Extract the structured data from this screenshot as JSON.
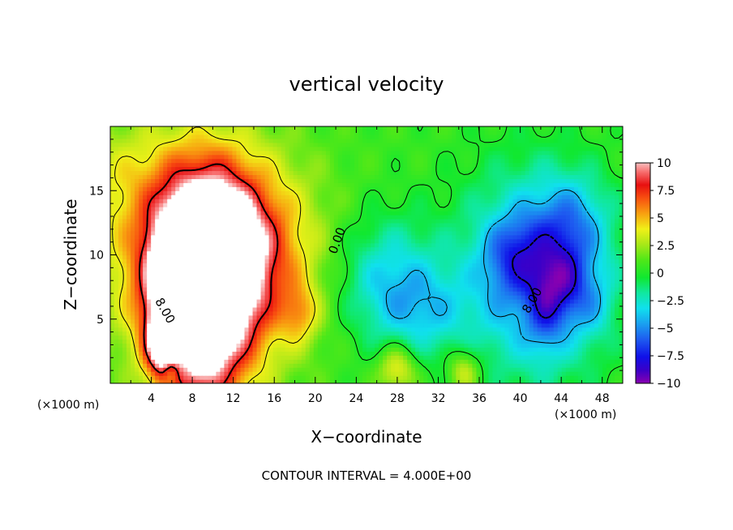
{
  "chart_data": {
    "type": "heatmap",
    "title": "vertical velocity",
    "xlabel": "X−coordinate",
    "ylabel": "Z−coordinate",
    "x_units_left": "(×1000 m)",
    "x_units_right": "(×1000 m)",
    "footer": "CONTOUR INTERVAL = 4.000E+00",
    "xlim": [
      0,
      50
    ],
    "ylim": [
      0,
      20
    ],
    "x_ticks": [
      4,
      8,
      12,
      16,
      20,
      24,
      28,
      32,
      36,
      40,
      44,
      48
    ],
    "y_ticks": [
      5,
      10,
      15
    ],
    "colorbar": {
      "range": [
        -10,
        10
      ],
      "ticks": [
        10,
        7.5,
        5,
        2.5,
        0,
        -2.5,
        -5,
        -7.5,
        -10
      ],
      "tick_labels": [
        "10",
        "7.5",
        "5",
        "2.5",
        "0",
        "−2.5",
        "−5",
        "−7.5",
        "−10"
      ]
    },
    "contour_labels": [
      {
        "text": "0.00",
        "x": 22.5,
        "y": 11.0,
        "rotate": -70
      },
      {
        "text": "8.00",
        "x": 5.0,
        "y": 5.5,
        "rotate": 60
      },
      {
        "text": "8.00",
        "x": 41.5,
        "y": 6.3,
        "rotate": -60
      }
    ],
    "features": [
      {
        "x": 9.5,
        "z": 6.5,
        "value": 10,
        "sx": 3.2,
        "sz": 6.0
      },
      {
        "x": 6.8,
        "z": 6.0,
        "value": 8,
        "sx": 2.4,
        "sz": 4.0
      },
      {
        "x": 10.0,
        "z": 11.0,
        "value": 6,
        "sx": 4.0,
        "sz": 3.5
      },
      {
        "x": 8.0,
        "z": 10.5,
        "value": 4,
        "sx": 7.5,
        "sz": 6.0
      },
      {
        "x": 13.5,
        "z": 9.0,
        "value": 3,
        "sx": 5.0,
        "sz": 5.0
      },
      {
        "x": 18.5,
        "z": 5.5,
        "value": 3,
        "sx": 1.2,
        "sz": 1.5
      },
      {
        "x": 5.0,
        "z": 3.0,
        "value": 6,
        "sx": 1.0,
        "sz": 1.5
      },
      {
        "x": 6.0,
        "z": 1.0,
        "value": -4,
        "sx": 0.6,
        "sz": 0.8
      },
      {
        "x": 7.5,
        "z": 3.0,
        "value": -4,
        "sx": 0.5,
        "sz": 1.3
      },
      {
        "x": 1.0,
        "z": 16.5,
        "value": 1.5,
        "sx": 8.0,
        "sz": 3.0
      },
      {
        "x": 28.0,
        "z": 1.2,
        "value": 4,
        "sx": 1.3,
        "sz": 1.3
      },
      {
        "x": 34.5,
        "z": 1.0,
        "value": 3.5,
        "sx": 1.1,
        "sz": 1.2
      },
      {
        "x": 27.0,
        "z": 8.0,
        "value": -4,
        "sx": 3.5,
        "sz": 3.5
      },
      {
        "x": 31.0,
        "z": 5.5,
        "value": -2.5,
        "sx": 3.0,
        "sz": 2.5
      },
      {
        "x": 41.5,
        "z": 8.5,
        "value": -6,
        "sx": 5.0,
        "sz": 5.5
      },
      {
        "x": 39.5,
        "z": 10.0,
        "value": -3,
        "sx": 2.0,
        "sz": 2.0
      },
      {
        "x": 42.5,
        "z": 6.5,
        "value": -3.5,
        "sx": 1.2,
        "sz": 2.5
      },
      {
        "x": 44.5,
        "z": 8.0,
        "value": -3,
        "sx": 1.2,
        "sz": 2.0
      },
      {
        "x": 45.0,
        "z": 12.5,
        "value": -3,
        "sx": 2.5,
        "sz": 2.5
      },
      {
        "x": 47.0,
        "z": 6.5,
        "value": -2,
        "sx": 1.5,
        "sz": 2.0
      }
    ]
  }
}
